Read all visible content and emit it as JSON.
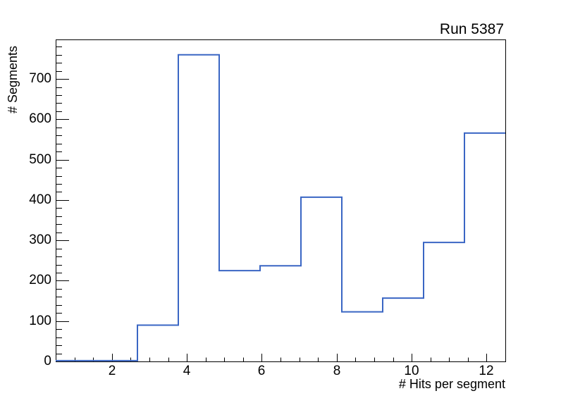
{
  "chart": {
    "title": "Run 5387",
    "x_label": "# Hits per segment",
    "y_label": "# Segments"
  },
  "chart_data": {
    "type": "histogram",
    "draw_style": "step-outline-unfilled",
    "title": "Run 5387",
    "xlabel": "# Hits per segment",
    "ylabel": "# Segments",
    "xlim": [
      0.5,
      12.5
    ],
    "ylim": [
      0,
      798
    ],
    "n_bins": 11,
    "bin_edges": [
      0.5,
      1.591,
      2.682,
      3.773,
      4.864,
      5.955,
      7.045,
      8.136,
      9.227,
      10.318,
      11.409,
      12.5
    ],
    "values": [
      2,
      2,
      90,
      760,
      225,
      237,
      407,
      123,
      157,
      295,
      566
    ],
    "x_major_ticks": [
      2,
      4,
      6,
      8,
      10,
      12
    ],
    "x_minor_tick_step": 0.5,
    "y_major_ticks": [
      0,
      100,
      200,
      300,
      400,
      500,
      600,
      700
    ],
    "y_minor_tick_step": 20,
    "grid": false,
    "legend": false,
    "line_color": "#3a66c4",
    "frame_color": "#000000",
    "background_color": "#ffffff"
  }
}
